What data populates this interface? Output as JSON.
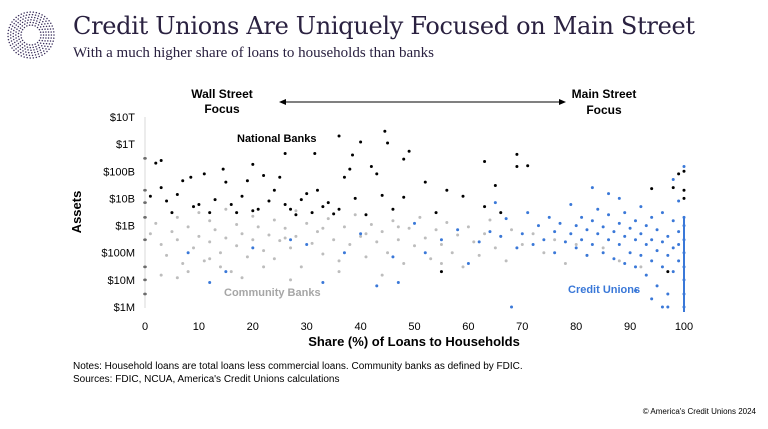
{
  "header": {
    "title": "Credit Unions Are Uniquely Focused on Main Street",
    "subtitle": "With a much higher share of loans to households than banks"
  },
  "chart_data": {
    "type": "scatter",
    "xlabel": "Share (%) of Loans to Households",
    "ylabel": "Assets",
    "xlim": [
      0,
      100
    ],
    "ylim_usd_log10": [
      6,
      13
    ],
    "x_ticks": [
      "0",
      "10",
      "20",
      "30",
      "40",
      "50",
      "60",
      "70",
      "80",
      "90",
      "100"
    ],
    "y_ticks": [
      "$1M",
      "$10M",
      "$100M",
      "$1B",
      "$10B",
      "$100B",
      "$1T",
      "$10T"
    ],
    "annotations": {
      "left": [
        "Wall Street",
        "Focus"
      ],
      "right": [
        "Main Street",
        "Focus"
      ]
    },
    "grid": false,
    "series": [
      {
        "name": "Community Banks",
        "color": "#bdbdbd",
        "points_x_pct_assets_billions": [
          [
            1,
            0.5
          ],
          [
            2,
            1.2
          ],
          [
            3,
            0.2
          ],
          [
            4,
            0.08
          ],
          [
            5,
            0.6
          ],
          [
            6,
            2
          ],
          [
            6,
            0.3
          ],
          [
            7,
            0.04
          ],
          [
            8,
            0.9
          ],
          [
            9,
            0.15
          ],
          [
            10,
            3
          ],
          [
            10,
            0.4
          ],
          [
            11,
            0.05
          ],
          [
            12,
            1.5
          ],
          [
            12,
            0.25
          ],
          [
            13,
            0.7
          ],
          [
            14,
            0.1
          ],
          [
            15,
            4
          ],
          [
            15,
            0.35
          ],
          [
            16,
            0.02
          ],
          [
            17,
            1.1
          ],
          [
            17,
            0.18
          ],
          [
            18,
            0.5
          ],
          [
            19,
            0.07
          ],
          [
            20,
            2.2
          ],
          [
            20,
            0.3
          ],
          [
            21,
            0.9
          ],
          [
            22,
            0.12
          ],
          [
            23,
            0.45
          ],
          [
            24,
            1.6
          ],
          [
            24,
            0.06
          ],
          [
            25,
            0.28
          ],
          [
            26,
            0.8
          ],
          [
            27,
            0.15
          ],
          [
            28,
            3.5
          ],
          [
            28,
            0.4
          ],
          [
            29,
            0.03
          ],
          [
            30,
            1.2
          ],
          [
            31,
            0.22
          ],
          [
            32,
            0.6
          ],
          [
            33,
            0.09
          ],
          [
            34,
            1.8
          ],
          [
            35,
            0.3
          ],
          [
            36,
            0.05
          ],
          [
            37,
            0.9
          ],
          [
            38,
            0.2
          ],
          [
            39,
            2.5
          ],
          [
            40,
            0.4
          ],
          [
            41,
            0.07
          ],
          [
            42,
            1.1
          ],
          [
            43,
            0.25
          ],
          [
            44,
            0.6
          ],
          [
            45,
            0.1
          ],
          [
            46,
            1.5
          ],
          [
            47,
            0.3
          ],
          [
            48,
            0.04
          ],
          [
            49,
            0.8
          ],
          [
            50,
            0.18
          ],
          [
            51,
            2
          ],
          [
            52,
            0.35
          ],
          [
            53,
            0.06
          ],
          [
            54,
            0.7
          ],
          [
            55,
            0.2
          ],
          [
            56,
            1.3
          ],
          [
            57,
            0.1
          ],
          [
            58,
            0.45
          ],
          [
            59,
            0.03
          ],
          [
            60,
            0.9
          ],
          [
            61,
            0.25
          ],
          [
            62,
            0.08
          ],
          [
            63,
            0.5
          ],
          [
            64,
            1.6
          ],
          [
            65,
            0.15
          ],
          [
            66,
            0.4
          ],
          [
            67,
            0.05
          ],
          [
            68,
            0.7
          ],
          [
            70,
            0.2
          ],
          [
            72,
            0.5
          ],
          [
            74,
            0.1
          ],
          [
            76,
            0.3
          ],
          [
            78,
            0.04
          ],
          [
            80,
            0.2
          ],
          [
            82,
            0.08
          ],
          [
            85,
            0.15
          ],
          [
            88,
            0.05
          ],
          [
            92,
            0.03
          ],
          [
            3,
            0.015
          ],
          [
            8,
            0.02
          ],
          [
            14,
            0.03
          ],
          [
            22,
            0.03
          ],
          [
            36,
            0.02
          ],
          [
            44,
            0.015
          ],
          [
            18,
            0.012
          ],
          [
            27,
            0.01
          ],
          [
            33,
            0.8
          ],
          [
            41,
            0.5
          ],
          [
            26,
            0.35
          ],
          [
            47,
            0.9
          ],
          [
            12,
            0.06
          ],
          [
            6,
            0.012
          ],
          [
            55,
            0.04
          ]
        ]
      },
      {
        "name": "National Banks",
        "color": "#000000",
        "points_x_pct_assets_billions": [
          [
            0,
            300
          ],
          [
            2,
            200
          ],
          [
            3,
            250
          ],
          [
            36,
            2000
          ],
          [
            40,
            1200
          ],
          [
            44.5,
            3000
          ],
          [
            45,
            1100
          ],
          [
            26,
            450
          ],
          [
            31.5,
            450
          ],
          [
            38.5,
            400
          ],
          [
            49,
            550
          ],
          [
            48,
            280
          ],
          [
            63,
            230
          ],
          [
            69,
            420
          ],
          [
            69,
            150
          ],
          [
            71,
            160
          ],
          [
            14.5,
            120
          ],
          [
            20,
            180
          ],
          [
            11,
            80
          ],
          [
            8.5,
            60
          ],
          [
            7,
            45
          ],
          [
            0,
            20
          ],
          [
            3,
            25
          ],
          [
            22,
            70
          ],
          [
            25,
            60
          ],
          [
            37,
            60
          ],
          [
            43,
            80
          ],
          [
            42,
            150
          ],
          [
            38,
            120
          ],
          [
            15,
            40
          ],
          [
            19,
            45
          ],
          [
            24,
            20
          ],
          [
            30,
            15
          ],
          [
            52,
            40
          ],
          [
            56,
            20
          ],
          [
            59,
            12
          ],
          [
            65,
            30
          ],
          [
            63,
            5
          ],
          [
            66,
            3
          ],
          [
            54,
            3
          ],
          [
            0,
            7
          ],
          [
            0,
            2
          ],
          [
            5,
            3
          ],
          [
            10,
            6
          ],
          [
            17,
            3
          ],
          [
            27,
            4
          ],
          [
            33,
            5
          ],
          [
            44,
            13
          ],
          [
            48,
            11
          ],
          [
            12,
            3
          ],
          [
            28,
            2.5
          ],
          [
            35,
            2.7
          ],
          [
            20,
            3.5
          ],
          [
            100,
            100
          ],
          [
            99,
            80
          ],
          [
            100,
            10
          ],
          [
            100,
            20
          ],
          [
            98,
            25
          ],
          [
            94,
            23
          ],
          [
            0,
            0.3
          ],
          [
            0,
            0.03
          ],
          [
            0,
            0.01
          ],
          [
            0,
            0.003
          ],
          [
            55,
            0.02
          ],
          [
            97,
            0.02
          ],
          [
            1,
            12
          ],
          [
            4,
            8
          ],
          [
            6,
            14
          ],
          [
            9,
            5
          ],
          [
            13,
            9
          ],
          [
            16,
            6
          ],
          [
            18,
            12
          ],
          [
            21,
            4
          ],
          [
            23,
            8
          ],
          [
            26,
            6
          ],
          [
            29,
            9
          ],
          [
            31,
            3
          ],
          [
            32,
            20
          ],
          [
            34,
            7
          ],
          [
            36,
            4
          ],
          [
            39,
            10
          ],
          [
            41,
            2.5
          ],
          [
            46,
            4
          ]
        ]
      },
      {
        "name": "Credit Unions",
        "color": "#3a78d8",
        "points_x_pct_assets_billions": [
          [
            100,
            0.001
          ],
          [
            100,
            0.003
          ],
          [
            100,
            0.01
          ],
          [
            100,
            0.03
          ],
          [
            100,
            0.1
          ],
          [
            100,
            0.3
          ],
          [
            100,
            1
          ],
          [
            100,
            2
          ],
          [
            99,
            0.05
          ],
          [
            99,
            0.2
          ],
          [
            99,
            0.6
          ],
          [
            98,
            0.02
          ],
          [
            98,
            0.15
          ],
          [
            98,
            1.5
          ],
          [
            97,
            0.001
          ],
          [
            97,
            0.08
          ],
          [
            97,
            0.4
          ],
          [
            96,
            0.03
          ],
          [
            96,
            0.25
          ],
          [
            96,
            3
          ],
          [
            95,
            0.006
          ],
          [
            95,
            0.12
          ],
          [
            95,
            0.7
          ],
          [
            94,
            0.05
          ],
          [
            94,
            0.3
          ],
          [
            94,
            2
          ],
          [
            93,
            0.015
          ],
          [
            93,
            0.2
          ],
          [
            93,
            1
          ],
          [
            92,
            0.08
          ],
          [
            92,
            0.5
          ],
          [
            92,
            5
          ],
          [
            91,
            0.03
          ],
          [
            91,
            0.3
          ],
          [
            91,
            1.5
          ],
          [
            90,
            0.1
          ],
          [
            90,
            0.8
          ],
          [
            89,
            0.04
          ],
          [
            89,
            0.4
          ],
          [
            89,
            3
          ],
          [
            88,
            0.2
          ],
          [
            88,
            1.2
          ],
          [
            87,
            0.06
          ],
          [
            87,
            0.6
          ],
          [
            86,
            0.3
          ],
          [
            86,
            2.5
          ],
          [
            86,
            15
          ],
          [
            85,
            0.1
          ],
          [
            85,
            0.9
          ],
          [
            84,
            0.5
          ],
          [
            84,
            4
          ],
          [
            83,
            0.2
          ],
          [
            83,
            1.5
          ],
          [
            82,
            0.08
          ],
          [
            82,
            0.7
          ],
          [
            81,
            0.3
          ],
          [
            81,
            2
          ],
          [
            80,
            0.15
          ],
          [
            80,
            1
          ],
          [
            79,
            0.5
          ],
          [
            79,
            6
          ],
          [
            78,
            0.25
          ],
          [
            77,
            1.2
          ],
          [
            76,
            0.1
          ],
          [
            76,
            0.6
          ],
          [
            75,
            2
          ],
          [
            74,
            0.3
          ],
          [
            73,
            1
          ],
          [
            72,
            0.2
          ],
          [
            71,
            3
          ],
          [
            70,
            0.5
          ],
          [
            69,
            0.15
          ],
          [
            68,
            0.001
          ],
          [
            67,
            1.8
          ],
          [
            66,
            0.4
          ],
          [
            65,
            7
          ],
          [
            64,
            0.6
          ],
          [
            62,
            0.25
          ],
          [
            60,
            0.04
          ],
          [
            58,
            0.7
          ],
          [
            55,
            0.3
          ],
          [
            52,
            0.1
          ],
          [
            50,
            1.2
          ],
          [
            47,
            0.008
          ],
          [
            46,
            0.07
          ],
          [
            43,
            0.006
          ],
          [
            40,
            0.5
          ],
          [
            37,
            0.1
          ],
          [
            33,
            0.008
          ],
          [
            30,
            0.2
          ],
          [
            27,
            0.3
          ],
          [
            20,
            0.15
          ],
          [
            15,
            0.02
          ],
          [
            12,
            0.008
          ],
          [
            8,
            0.1
          ],
          [
            99,
            8
          ],
          [
            98,
            50
          ],
          [
            100,
            150
          ],
          [
            97,
            0.003
          ],
          [
            96,
            0.001
          ],
          [
            94,
            0.002
          ],
          [
            91,
            0.004
          ],
          [
            83,
            25
          ],
          [
            88,
            10
          ]
        ]
      }
    ],
    "series_labels": {
      "National Banks": "National Banks",
      "Community Banks": "Community Banks",
      "Credit Unions": "Credit Unions"
    }
  },
  "footer": {
    "note1": "Notes: Household loans are total loans less commercial loans. Community banks as defined by FDIC.",
    "note2": "Sources: FDIC, NCUA, America's Credit Unions calculations",
    "copyright": "© America's Credit Unions 2024"
  }
}
